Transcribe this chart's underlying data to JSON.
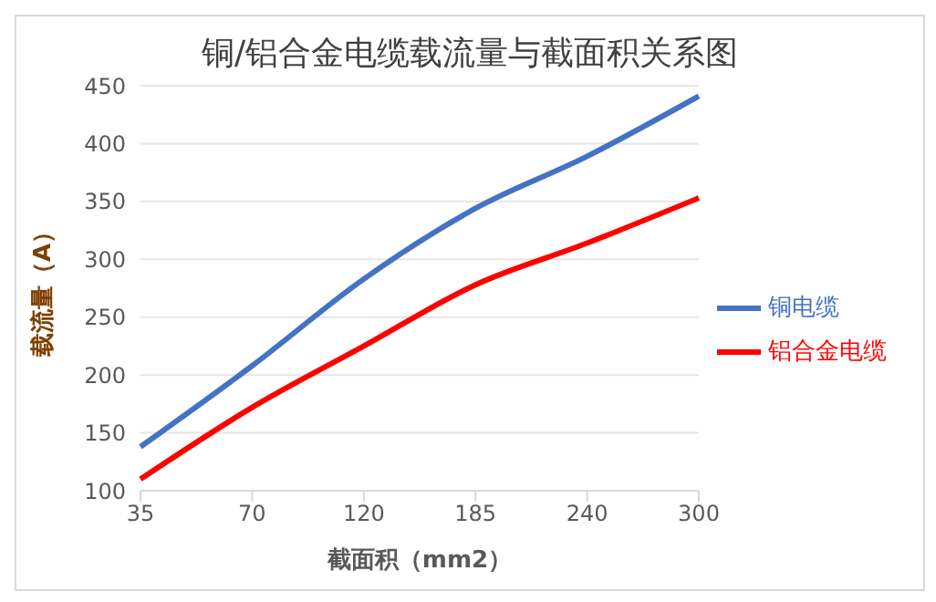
{
  "chart_data": {
    "type": "line",
    "title": "铜/铝合金电缆载流量与截面积关系图",
    "xlabel": "截面积（mm2）",
    "ylabel": "载流量（A）",
    "categories": [
      "35",
      "70",
      "120",
      "185",
      "240",
      "300"
    ],
    "series": [
      {
        "name": "铜电缆",
        "color": "#4472c4",
        "values": [
          138,
          208,
          283,
          344,
          389,
          441
        ]
      },
      {
        "name": "铝合金电缆",
        "color": "#ff0000",
        "values": [
          110,
          172,
          225,
          278,
          314,
          353
        ]
      }
    ],
    "ylim": [
      100,
      450
    ],
    "yticks": [
      100,
      150,
      200,
      250,
      300,
      350,
      400,
      450
    ],
    "grid": "y",
    "legend": "right",
    "marker": "none",
    "line_style": "solid"
  }
}
